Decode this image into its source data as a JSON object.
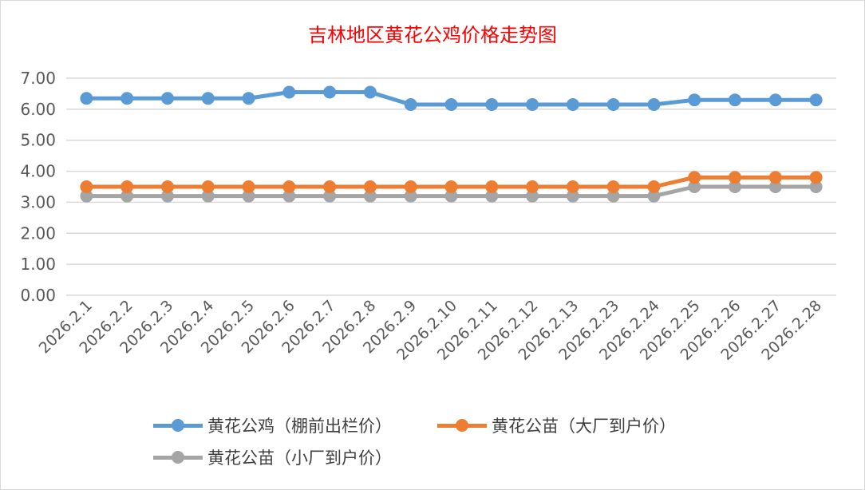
{
  "chart_data": {
    "type": "line",
    "title": "吉林地区黄花公鸡价格走势图",
    "xlabel": "",
    "ylabel": "",
    "ylim": [
      0,
      7
    ],
    "yticks": [
      "0.00",
      "1.00",
      "2.00",
      "3.00",
      "4.00",
      "5.00",
      "6.00",
      "7.00"
    ],
    "grid": true,
    "legend_position": "bottom",
    "categories": [
      "2026.2.1",
      "2026.2.2",
      "2026.2.3",
      "2026.2.4",
      "2026.2.5",
      "2026.2.6",
      "2026.2.7",
      "2026.2.8",
      "2026.2.9",
      "2026.2.10",
      "2026.2.11",
      "2026.2.12",
      "2026.2.13",
      "2026.2.23",
      "2026.2.24",
      "2026.2.25",
      "2026.2.26",
      "2026.2.27",
      "2026.2.28"
    ],
    "series": [
      {
        "name": "黄花公鸡（棚前出栏价）",
        "color": "#5b9bd5",
        "values": [
          6.35,
          6.35,
          6.35,
          6.35,
          6.35,
          6.55,
          6.55,
          6.55,
          6.15,
          6.15,
          6.15,
          6.15,
          6.15,
          6.15,
          6.15,
          6.3,
          6.3,
          6.3,
          6.3
        ]
      },
      {
        "name": "黄花公苗（大厂到户价）",
        "color": "#ed7d31",
        "values": [
          3.5,
          3.5,
          3.5,
          3.5,
          3.5,
          3.5,
          3.5,
          3.5,
          3.5,
          3.5,
          3.5,
          3.5,
          3.5,
          3.5,
          3.5,
          3.8,
          3.8,
          3.8,
          3.8
        ]
      },
      {
        "name": "黄花公苗（小厂到户价）",
        "color": "#a5a5a5",
        "values": [
          3.2,
          3.2,
          3.2,
          3.2,
          3.2,
          3.2,
          3.2,
          3.2,
          3.2,
          3.2,
          3.2,
          3.2,
          3.2,
          3.2,
          3.2,
          3.5,
          3.5,
          3.5,
          3.5
        ]
      }
    ]
  }
}
